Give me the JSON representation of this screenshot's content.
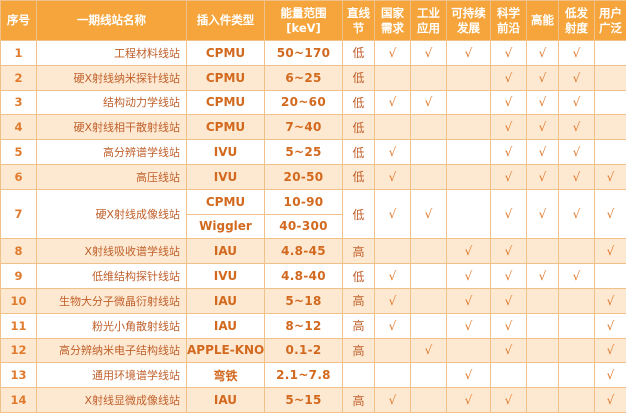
{
  "colors": {
    "header_bg": "#f5a53b",
    "row_alt_bg": "#fde9d2",
    "text": "#c0602b",
    "border": "#f0c28a"
  },
  "header": {
    "index": "序号",
    "name": "一期线站名称",
    "type": "插入件类型",
    "energy": "能量范围 [keV]",
    "focus": "直线 节",
    "cols": [
      "国家 需求",
      "工业 应用",
      "可持续 发展",
      "科学 前沿",
      "高能",
      "低发 射度",
      "用户 广泛"
    ]
  },
  "check": "√",
  "rows": [
    {
      "index": "1",
      "name": "工程材料线站",
      "type": "CPMU",
      "energy": "50~170",
      "focus": "低",
      "marks": [
        "√",
        "√",
        "√",
        "√",
        "√",
        "√",
        ""
      ]
    },
    {
      "index": "2",
      "name": "硬X射线纳米探针线站",
      "type": "CPMU",
      "energy": "6~25",
      "focus": "低",
      "marks": [
        "",
        "",
        "",
        "√",
        "√",
        "√",
        ""
      ]
    },
    {
      "index": "3",
      "name": "结构动力学线站",
      "type": "CPMU",
      "energy": "20~60",
      "focus": "低",
      "marks": [
        "√",
        "√",
        "",
        "√",
        "√",
        "√",
        ""
      ]
    },
    {
      "index": "4",
      "name": "硬X射线相干散射线站",
      "type": "CPMU",
      "energy": "7~40",
      "focus": "低",
      "marks": [
        "",
        "",
        "",
        "√",
        "√",
        "√",
        ""
      ]
    },
    {
      "index": "5",
      "name": "高分辨谱学线站",
      "type": "IVU",
      "energy": "5~25",
      "focus": "低",
      "marks": [
        "√",
        "",
        "",
        "√",
        "√",
        "√",
        ""
      ]
    },
    {
      "index": "6",
      "name": "高压线站",
      "type": "IVU",
      "energy": "20-50",
      "focus": "低",
      "marks": [
        "√",
        "",
        "",
        "√",
        "√",
        "√",
        "√"
      ]
    },
    {
      "index": "7",
      "name": "硬X射线成像线站",
      "focus": "低",
      "marks": [
        "√",
        "√",
        "",
        "√",
        "√",
        "√",
        "√"
      ],
      "sub": [
        {
          "type": "CPMU",
          "energy": "10-90"
        },
        {
          "type": "Wiggler",
          "energy": "40-300"
        }
      ]
    },
    {
      "index": "8",
      "name": "X射线吸收谱学线站",
      "type": "IAU",
      "energy": "4.8-45",
      "focus": "高",
      "marks": [
        "",
        "",
        "√",
        "√",
        "",
        "",
        "√"
      ]
    },
    {
      "index": "9",
      "name": "低维结构探针线站",
      "type": "IVU",
      "energy": "4.8-40",
      "focus": "低",
      "marks": [
        "√",
        "",
        "√",
        "√",
        "√",
        "√",
        ""
      ]
    },
    {
      "index": "10",
      "name": "生物大分子微晶衍射线站",
      "type": "IAU",
      "energy": "5~18",
      "focus": "高",
      "marks": [
        "√",
        "",
        "√",
        "√",
        "",
        "",
        "√"
      ]
    },
    {
      "index": "11",
      "name": "粉光小角散射线站",
      "type": "IAU",
      "energy": "8~12",
      "focus": "高",
      "marks": [
        "√",
        "",
        "√",
        "√",
        "",
        "",
        "√"
      ]
    },
    {
      "index": "12",
      "name": "高分辨纳米电子结构线站",
      "type": "APPLE-KNOT",
      "energy": "0.1-2",
      "focus": "高",
      "marks": [
        "",
        "√",
        "",
        "√",
        "",
        "",
        "√"
      ]
    },
    {
      "index": "13",
      "name": "通用环境谱学线站",
      "type": "弯铁",
      "energy": "2.1~7.8",
      "focus": "",
      "marks": [
        "",
        "",
        "√",
        "",
        "",
        "",
        "√"
      ]
    },
    {
      "index": "14",
      "name": "X射线显微成像线站",
      "type": "IAU",
      "energy": "5~15",
      "focus": "高",
      "marks": [
        "√",
        "",
        "√",
        "√",
        "",
        "",
        "√"
      ]
    }
  ]
}
